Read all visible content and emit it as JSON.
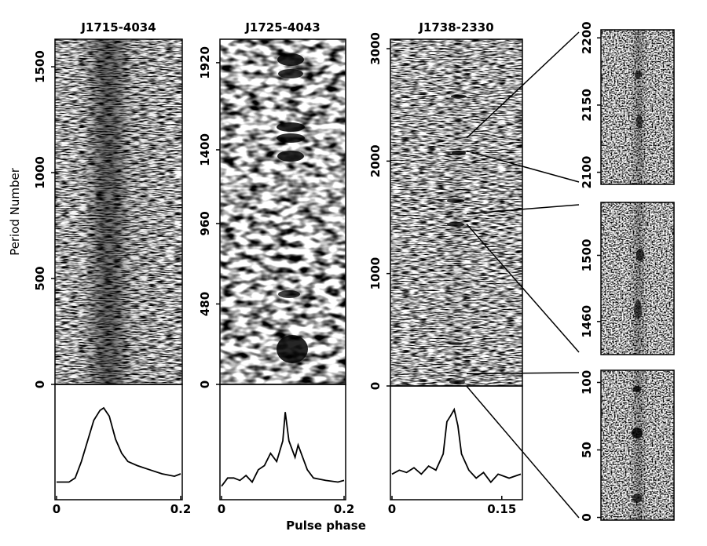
{
  "chart_data": [
    {
      "type": "pulse-stack",
      "title": "J1715-4034",
      "ylabel": "Period Number",
      "ylim": [
        0,
        1630
      ],
      "yticks": [
        0,
        500,
        1000,
        1500
      ],
      "xlim": [
        0,
        0.2
      ],
      "xticks": [
        0,
        0.2
      ],
      "profile": {
        "x": [
          0,
          0.02,
          0.03,
          0.04,
          0.05,
          0.06,
          0.07,
          0.076,
          0.085,
          0.095,
          0.105,
          0.115,
          0.13,
          0.15,
          0.17,
          0.19,
          0.2
        ],
        "values": [
          0.1,
          0.1,
          0.15,
          0.35,
          0.6,
          0.85,
          0.97,
          1.0,
          0.9,
          0.62,
          0.45,
          0.35,
          0.3,
          0.25,
          0.2,
          0.17,
          0.2
        ]
      }
    },
    {
      "type": "pulse-stack",
      "title": "J1725-4043",
      "xlabel": "Pulse phase",
      "ylim": [
        0,
        2060
      ],
      "yticks": [
        0,
        480,
        960,
        1400,
        1920
      ],
      "xlim": [
        0,
        0.2
      ],
      "xticks": [
        0,
        0.2
      ],
      "profile": {
        "x": [
          0,
          0.01,
          0.02,
          0.03,
          0.04,
          0.05,
          0.06,
          0.07,
          0.08,
          0.09,
          0.1,
          0.104,
          0.11,
          0.12,
          0.125,
          0.13,
          0.14,
          0.15,
          0.17,
          0.19,
          0.2
        ],
        "values": [
          0.05,
          0.15,
          0.15,
          0.12,
          0.18,
          0.1,
          0.25,
          0.3,
          0.45,
          0.35,
          0.6,
          0.95,
          0.6,
          0.4,
          0.55,
          0.45,
          0.25,
          0.15,
          0.12,
          0.1,
          0.12
        ]
      }
    },
    {
      "type": "pulse-stack",
      "title": "J1738-2330",
      "ylim": [
        0,
        3084
      ],
      "yticks": [
        0,
        1000,
        2000,
        3000
      ],
      "xlim": [
        0,
        0.176
      ],
      "xticks": [
        0,
        0.15
      ],
      "profile": {
        "x": [
          0,
          0.01,
          0.02,
          0.03,
          0.04,
          0.05,
          0.06,
          0.07,
          0.075,
          0.08,
          0.085,
          0.09,
          0.095,
          0.105,
          0.115,
          0.125,
          0.135,
          0.145,
          0.16,
          0.176
        ],
        "values": [
          0.2,
          0.25,
          0.22,
          0.28,
          0.2,
          0.3,
          0.25,
          0.45,
          0.85,
          0.92,
          1.0,
          0.8,
          0.45,
          0.25,
          0.15,
          0.22,
          0.1,
          0.2,
          0.15,
          0.2
        ]
      }
    },
    {
      "type": "pulse-stack-zoom",
      "ylim": [
        2091,
        2206
      ],
      "yticks": [
        2100,
        2150,
        2200
      ]
    },
    {
      "type": "pulse-stack-zoom",
      "ylim": [
        1440,
        1532
      ],
      "yticks": [
        1460,
        1500
      ]
    },
    {
      "type": "pulse-stack-zoom",
      "ylim": [
        -2,
        109
      ],
      "yticks": [
        0,
        50,
        100
      ]
    }
  ]
}
